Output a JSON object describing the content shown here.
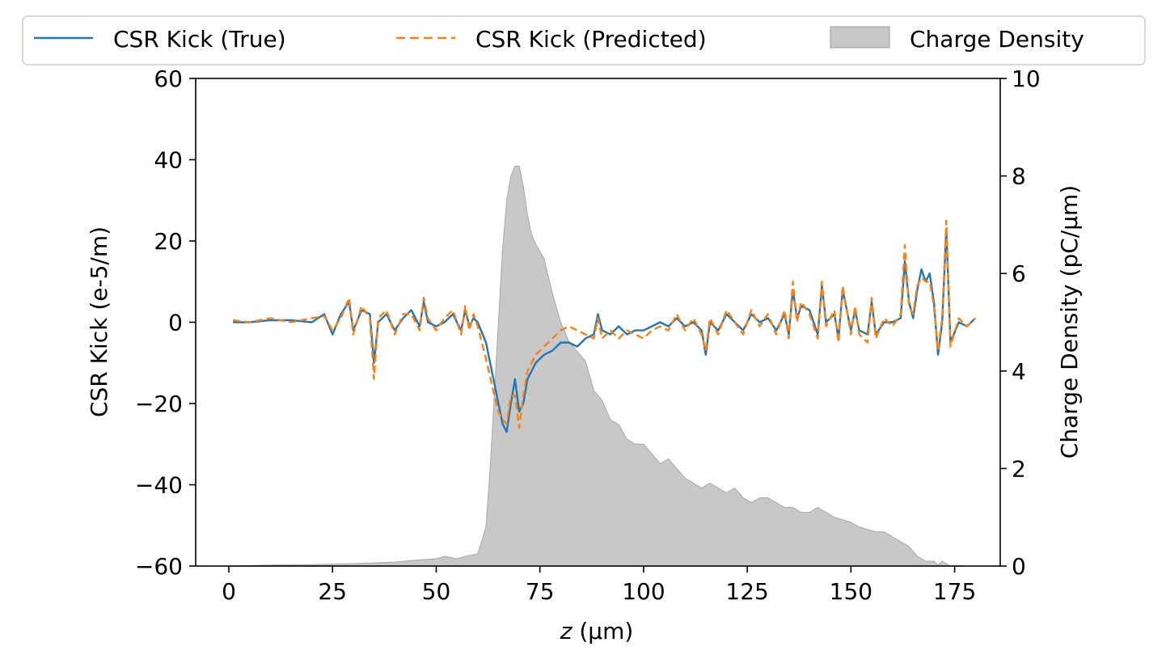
{
  "chart_data": {
    "type": "line",
    "xlabel_var": "z",
    "xlabel_unit": "(μm)",
    "ylabel_left": "CSR Kick (e-5/m)",
    "ylabel_right": "Charge Density (pC/μm)",
    "xlim": [
      -8,
      186
    ],
    "ylim_left": [
      -60,
      60
    ],
    "ylim_right": [
      0,
      10
    ],
    "xticks": [
      0,
      25,
      50,
      75,
      100,
      125,
      150,
      175
    ],
    "yticks_left": [
      -60,
      -40,
      -20,
      0,
      20,
      40,
      60
    ],
    "yticks_left_labels": [
      "−60",
      "−40",
      "−20",
      "0",
      "20",
      "40",
      "60"
    ],
    "yticks_right": [
      0,
      2,
      4,
      6,
      8,
      10
    ],
    "grid": false,
    "legend": {
      "placement": "top-center",
      "entries": [
        "CSR Kick (True)",
        "CSR Kick (Predicted)",
        "Charge Density"
      ]
    },
    "series": [
      {
        "name": "CSR Kick (True)",
        "axis": "left",
        "color": "#1f77b4",
        "style": "solid",
        "x": [
          1,
          5,
          10,
          15,
          20,
          23,
          25,
          27,
          29,
          30,
          32,
          34,
          35,
          36,
          38,
          40,
          42,
          44,
          46,
          47,
          48,
          50,
          52,
          54,
          56,
          57,
          58,
          59,
          60,
          62,
          64,
          65,
          66,
          67,
          68,
          69,
          70,
          71,
          72,
          74,
          76,
          78,
          80,
          82,
          84,
          86,
          88,
          89,
          90,
          92,
          94,
          96,
          98,
          100,
          102,
          104,
          106,
          108,
          110,
          112,
          114,
          115,
          116,
          118,
          120,
          122,
          124,
          126,
          128,
          130,
          132,
          134,
          135,
          136,
          137,
          138,
          140,
          142,
          143,
          144,
          146,
          147,
          148,
          150,
          151,
          152,
          154,
          155,
          156,
          158,
          160,
          162,
          163,
          164,
          165,
          166,
          167,
          168,
          169,
          170,
          171,
          172,
          173,
          174,
          176,
          178,
          180
        ],
        "y": [
          0,
          0,
          0.5,
          0.5,
          0,
          2,
          -3,
          2,
          5,
          -2,
          3,
          2,
          -10,
          0,
          2,
          -2,
          1,
          3,
          -1,
          5,
          0,
          -1,
          0,
          2,
          -2,
          3,
          -1,
          1,
          0,
          -5,
          -15,
          -20,
          -25,
          -27,
          -20,
          -14,
          -22,
          -20,
          -14,
          -10,
          -8,
          -7,
          -5,
          -5,
          -6,
          -4,
          -3,
          2,
          -2,
          -3,
          -1,
          -3,
          -2,
          -2,
          -1,
          0,
          -1,
          1,
          -1,
          0,
          -2,
          -8,
          0,
          -2,
          2,
          0,
          -2,
          2,
          0,
          1,
          -2,
          2,
          -3,
          8,
          1,
          4,
          3,
          -3,
          9,
          0,
          2,
          -4,
          8,
          -2,
          3,
          -2,
          -3,
          5,
          -3,
          0,
          0,
          1,
          15,
          5,
          1,
          8,
          13,
          10,
          12,
          5,
          -8,
          0,
          23,
          -5,
          0,
          -1,
          1
        ]
      },
      {
        "name": "CSR Kick (Predicted)",
        "axis": "left",
        "color": "#ff7f0e",
        "style": "dashed",
        "x": [
          1,
          5,
          10,
          15,
          20,
          23,
          25,
          27,
          29,
          30,
          32,
          34,
          35,
          36,
          38,
          40,
          42,
          44,
          46,
          47,
          48,
          50,
          52,
          54,
          56,
          57,
          58,
          59,
          60,
          62,
          64,
          65,
          66,
          67,
          68,
          69,
          70,
          71,
          72,
          74,
          76,
          78,
          80,
          82,
          84,
          86,
          88,
          89,
          90,
          92,
          94,
          96,
          98,
          100,
          102,
          104,
          106,
          108,
          110,
          112,
          114,
          115,
          116,
          118,
          120,
          122,
          124,
          126,
          128,
          130,
          132,
          134,
          135,
          136,
          137,
          138,
          140,
          142,
          143,
          144,
          146,
          147,
          148,
          150,
          151,
          152,
          154,
          155,
          156,
          158,
          160,
          162,
          163,
          164,
          165,
          166,
          167,
          168,
          169,
          170,
          171,
          172,
          173,
          174,
          176,
          178,
          180
        ],
        "y": [
          0.5,
          0,
          1,
          0,
          1,
          1.5,
          -2,
          1,
          6,
          -3,
          4,
          1,
          -14,
          1,
          3,
          -3,
          2,
          2,
          -2,
          6,
          1,
          -2,
          1,
          3,
          -3,
          4,
          -2,
          2,
          -1,
          -9,
          -18,
          -22,
          -24,
          -25,
          -18,
          -18,
          -26,
          -18,
          -12,
          -8,
          -6,
          -4,
          -2,
          -1,
          -2,
          -3,
          -4,
          1,
          -4,
          -2,
          -4,
          -2,
          -3,
          -4,
          -2,
          -1,
          -2,
          2,
          -2,
          1,
          -3,
          -7,
          1,
          -3,
          3,
          0,
          -3,
          3,
          -1,
          2,
          -3,
          3,
          -4,
          10,
          0,
          5,
          2,
          -4,
          10,
          -1,
          3,
          -5,
          9,
          -3,
          4,
          -3,
          -5,
          6,
          -4,
          1,
          -1,
          2,
          19,
          4,
          2,
          9,
          11,
          10,
          10,
          4,
          -7,
          1,
          25,
          -6,
          1,
          -1,
          1
        ]
      }
    ],
    "area": {
      "name": "Charge Density",
      "axis": "right",
      "color": "#c8c8c8",
      "x": [
        0,
        10,
        20,
        30,
        40,
        45,
        50,
        52,
        55,
        57,
        60,
        62,
        63,
        64,
        65,
        66,
        67,
        68,
        69,
        70,
        71,
        72,
        73,
        74,
        76,
        78,
        80,
        82,
        84,
        86,
        88,
        90,
        92,
        94,
        96,
        98,
        100,
        102,
        104,
        106,
        108,
        110,
        112,
        114,
        116,
        118,
        120,
        122,
        124,
        126,
        128,
        130,
        132,
        134,
        136,
        138,
        140,
        142,
        144,
        146,
        148,
        150,
        152,
        154,
        156,
        158,
        160,
        162,
        164,
        165,
        166,
        168,
        170,
        171,
        172,
        174,
        176,
        178,
        180
      ],
      "y": [
        0,
        0.02,
        0.03,
        0.05,
        0.08,
        0.12,
        0.15,
        0.2,
        0.15,
        0.2,
        0.25,
        0.8,
        2,
        3.5,
        5,
        6.5,
        7.5,
        8,
        8.2,
        8.2,
        7.8,
        7.2,
        6.8,
        6.6,
        6.3,
        5.6,
        5,
        4.6,
        4.4,
        4.2,
        3.6,
        3.4,
        3,
        2.9,
        2.6,
        2.5,
        2.5,
        2.3,
        2.1,
        2.2,
        2,
        1.8,
        1.7,
        1.6,
        1.7,
        1.6,
        1.5,
        1.6,
        1.4,
        1.3,
        1.4,
        1.4,
        1.3,
        1.2,
        1.2,
        1.1,
        1.1,
        1.2,
        1.1,
        1,
        0.95,
        0.9,
        0.8,
        0.75,
        0.7,
        0.7,
        0.6,
        0.5,
        0.4,
        0.3,
        0.2,
        0.1,
        0.1,
        0.02,
        0.1,
        0,
        0.01,
        0,
        0
      ]
    }
  }
}
